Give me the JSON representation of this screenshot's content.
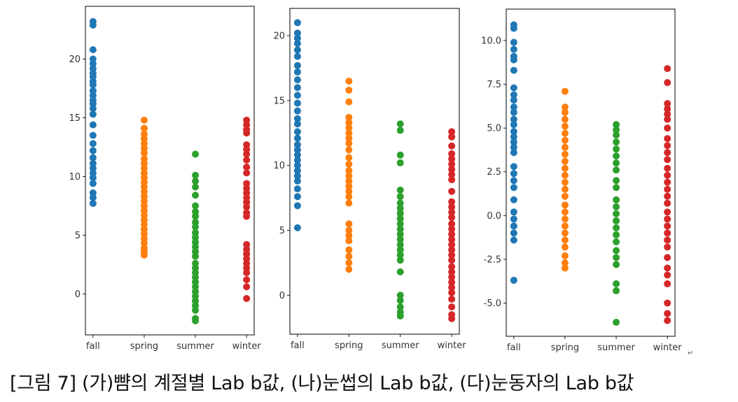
{
  "chart_data": [
    {
      "type": "scatter",
      "title": "",
      "xlabel": "",
      "ylabel": "",
      "categories": [
        "fall",
        "spring",
        "summer",
        "winter"
      ],
      "ylim": [
        -3.5,
        24.5
      ],
      "yticks": [
        0,
        5,
        10,
        15,
        20
      ],
      "ytick_labels": [
        "0",
        "5",
        "10",
        "15",
        "20"
      ],
      "series": [
        {
          "name": "fall",
          "color": "#1f77b4",
          "values": [
            23.2,
            22.9,
            20.8,
            20.0,
            19.6,
            19.2,
            18.8,
            18.5,
            18.1,
            17.8,
            17.3,
            16.9,
            16.5,
            16.2,
            15.8,
            15.3,
            14.4,
            13.5,
            12.8,
            12.2,
            11.6,
            11.1,
            10.7,
            10.3,
            9.9,
            9.4,
            8.6,
            8.2,
            7.7
          ]
        },
        {
          "name": "spring",
          "color": "#ff7f0e",
          "values": [
            14.8,
            14.1,
            13.6,
            13.2,
            12.8,
            12.4,
            12.0,
            11.5,
            11.1,
            10.7,
            10.3,
            9.9,
            9.5,
            9.1,
            8.7,
            8.3,
            7.9,
            7.5,
            7.1,
            6.7,
            6.3,
            5.9,
            5.5,
            5.1,
            4.7,
            4.3,
            3.9,
            3.6,
            3.3
          ]
        },
        {
          "name": "summer",
          "color": "#2ca02c",
          "values": [
            11.9,
            10.1,
            9.6,
            9.1,
            8.4,
            7.5,
            7.0,
            6.6,
            6.1,
            5.7,
            5.2,
            4.8,
            4.4,
            4.0,
            3.6,
            3.2,
            2.6,
            2.2,
            1.8,
            1.4,
            1.0,
            0.6,
            0.2,
            -0.2,
            -0.6,
            -1.0,
            -1.4,
            -2.1,
            -2.3
          ]
        },
        {
          "name": "winter",
          "color": "#d62728",
          "values": [
            14.8,
            14.4,
            14.0,
            13.7,
            12.7,
            12.3,
            11.9,
            11.4,
            10.8,
            10.3,
            9.4,
            9.0,
            8.6,
            8.2,
            7.8,
            7.4,
            6.9,
            6.6,
            4.2,
            3.8,
            3.4,
            3.0,
            2.6,
            2.2,
            1.8,
            1.2,
            0.6,
            -0.4
          ]
        }
      ]
    },
    {
      "type": "scatter",
      "title": "",
      "xlabel": "",
      "ylabel": "",
      "categories": [
        "fall",
        "spring",
        "summer",
        "winter"
      ],
      "ylim": [
        -3.0,
        22.1
      ],
      "yticks": [
        0,
        5,
        10,
        15,
        20
      ],
      "ytick_labels": [
        "0",
        "5",
        "10",
        "15",
        "20"
      ],
      "series": [
        {
          "name": "fall",
          "color": "#1f77b4",
          "values": [
            21.0,
            20.2,
            19.8,
            19.4,
            18.9,
            18.4,
            17.7,
            17.2,
            16.6,
            16.0,
            15.4,
            14.8,
            14.2,
            13.6,
            13.2,
            12.6,
            12.1,
            11.6,
            11.2,
            10.8,
            10.4,
            10.0,
            9.6,
            9.2,
            8.8,
            8.2,
            7.6,
            6.9,
            5.2
          ]
        },
        {
          "name": "spring",
          "color": "#ff7f0e",
          "values": [
            16.5,
            15.8,
            14.9,
            13.7,
            13.3,
            12.9,
            12.5,
            12.1,
            11.7,
            11.2,
            10.6,
            10.1,
            9.6,
            9.2,
            8.8,
            8.4,
            8.0,
            7.6,
            7.1,
            5.5,
            5.0,
            4.6,
            4.2,
            3.5,
            3.0,
            2.5,
            2.0
          ]
        },
        {
          "name": "summer",
          "color": "#2ca02c",
          "values": [
            13.2,
            12.7,
            10.8,
            10.2,
            8.1,
            7.6,
            7.1,
            6.7,
            6.3,
            5.9,
            5.5,
            5.1,
            4.7,
            4.3,
            3.9,
            3.5,
            3.1,
            2.7,
            1.8,
            0.0,
            -0.4,
            -0.9,
            -1.3,
            -1.6
          ]
        },
        {
          "name": "winter",
          "color": "#d62728",
          "values": [
            12.6,
            12.2,
            11.5,
            10.9,
            10.5,
            10.1,
            9.7,
            9.3,
            8.9,
            8.0,
            7.2,
            6.8,
            6.4,
            6.0,
            5.5,
            5.1,
            4.7,
            4.3,
            3.9,
            3.5,
            3.1,
            2.7,
            2.2,
            1.8,
            1.4,
            1.0,
            0.6,
            0.2,
            -0.3,
            -0.9,
            -1.5,
            -1.8
          ]
        }
      ]
    },
    {
      "type": "scatter",
      "title": "",
      "xlabel": "",
      "ylabel": "",
      "categories": [
        "fall",
        "spring",
        "summer",
        "winter"
      ],
      "ylim": [
        -6.9,
        11.8
      ],
      "yticks": [
        -5.0,
        -2.5,
        0.0,
        2.5,
        5.0,
        7.5,
        10.0
      ],
      "ytick_labels": [
        "-5.0",
        "-2.5",
        "0.0",
        "2.5",
        "5.0",
        "7.5",
        "10.0"
      ],
      "series": [
        {
          "name": "fall",
          "color": "#1f77b4",
          "values": [
            10.9,
            10.7,
            9.9,
            9.5,
            9.1,
            8.9,
            8.3,
            7.3,
            6.9,
            6.6,
            6.2,
            5.9,
            5.5,
            5.2,
            4.8,
            4.5,
            4.2,
            3.9,
            3.6,
            2.8,
            2.4,
            2.0,
            1.6,
            0.9,
            0.2,
            -0.2,
            -0.6,
            -1.0,
            -1.4,
            -3.7
          ]
        },
        {
          "name": "spring",
          "color": "#ff7f0e",
          "values": [
            7.1,
            6.2,
            5.9,
            5.5,
            5.1,
            4.7,
            4.3,
            3.9,
            3.5,
            3.1,
            2.7,
            2.3,
            1.9,
            1.5,
            1.1,
            0.6,
            0.2,
            -0.2,
            -0.6,
            -1.0,
            -1.4,
            -1.8,
            -2.3,
            -2.7,
            -3.0
          ]
        },
        {
          "name": "summer",
          "color": "#2ca02c",
          "values": [
            5.2,
            4.9,
            4.6,
            4.2,
            3.8,
            3.4,
            3.0,
            2.6,
            2.0,
            1.6,
            0.9,
            0.5,
            0.1,
            -0.3,
            -0.7,
            -1.1,
            -1.5,
            -2.0,
            -2.4,
            -2.8,
            -3.9,
            -4.3,
            -6.1
          ]
        },
        {
          "name": "winter",
          "color": "#d62728",
          "values": [
            8.4,
            7.6,
            6.4,
            6.1,
            5.8,
            5.5,
            5.0,
            4.4,
            4.0,
            3.6,
            3.2,
            2.7,
            2.3,
            1.9,
            1.5,
            1.1,
            0.7,
            0.2,
            -0.2,
            -0.6,
            -1.0,
            -1.4,
            -1.8,
            -2.4,
            -3.0,
            -3.4,
            -3.9,
            -5.0,
            -5.6,
            -6.0
          ]
        }
      ]
    }
  ],
  "caption": "[그림 7] (가)뺨의 계절별 Lab b값, (나)눈썹의 Lab b값, (다)눈동자의 Lab b값",
  "return_mark": "↵"
}
